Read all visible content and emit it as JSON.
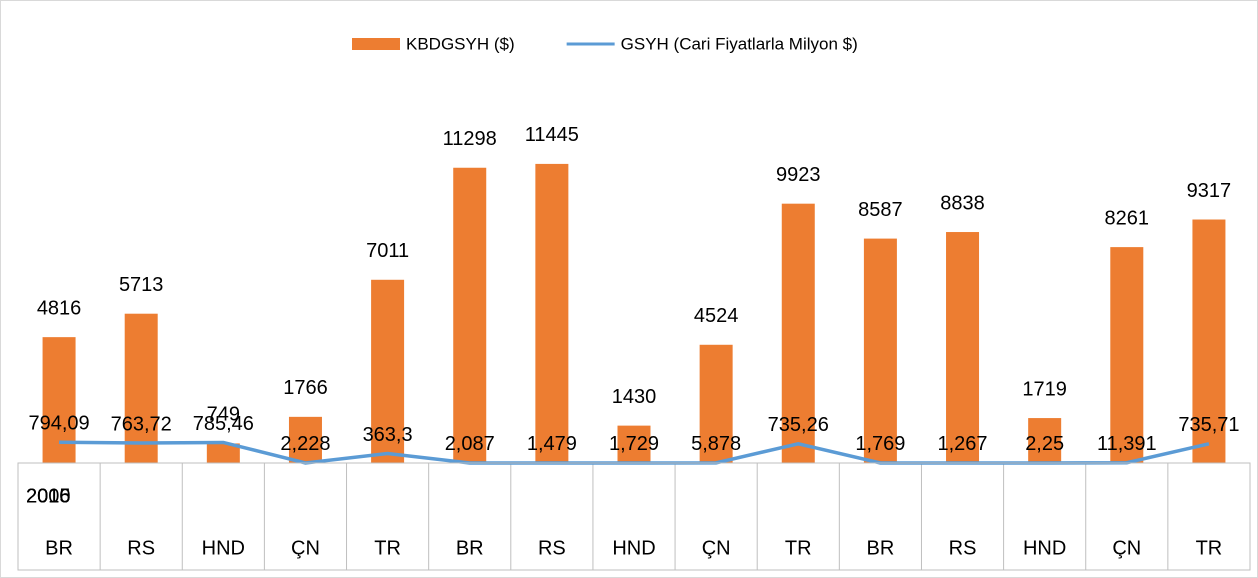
{
  "chart_data": {
    "type": "bar_line",
    "categories": [
      "BR",
      "RS",
      "HND",
      "ÇN",
      "TR",
      "BR",
      "RS",
      "HND",
      "ÇN",
      "TR",
      "BR",
      "RS",
      "HND",
      "ÇN",
      "TR"
    ],
    "category_groups": [
      "2005",
      null,
      null,
      null,
      null,
      "2010",
      null,
      null,
      null,
      null,
      "2016",
      null,
      null,
      null,
      null
    ],
    "series": [
      {
        "name": "KBDGSYH ($)",
        "color": "#ed7d31",
        "kind": "bar",
        "values": [
          4816,
          5713,
          749,
          1766,
          7011,
          11298,
          11445,
          1430,
          4524,
          9923,
          8587,
          8838,
          1719,
          8261,
          9317
        ]
      },
      {
        "name": "GSYH (Cari Fiyatlarla Milyon $)",
        "color": "#5b9bd5",
        "kind": "line",
        "values": [
          794.09,
          763.72,
          785.46,
          2.228,
          363.3,
          2.087,
          1.479,
          1.729,
          5.878,
          735.26,
          1.769,
          1.267,
          2.25,
          11.391,
          735.71
        ],
        "value_labels": [
          "794,09",
          "763,72",
          "785,46",
          "2,228",
          "363,3",
          "2,087",
          "1,479",
          "1,729",
          "5,878",
          "735,26",
          "1,769",
          "1,267",
          "2,25",
          "11,391",
          "735,71"
        ]
      }
    ],
    "ylim": [
      0,
      15000
    ],
    "legend": "top"
  }
}
